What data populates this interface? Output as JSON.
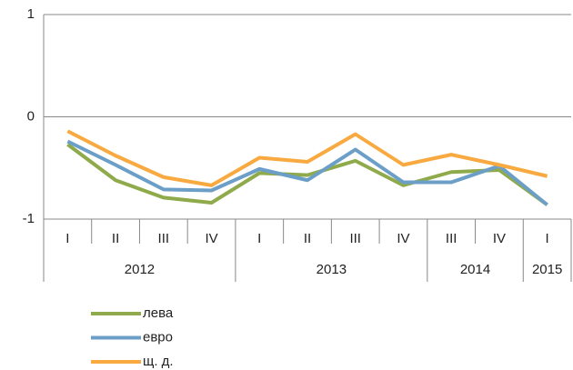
{
  "chart_data": {
    "type": "line",
    "groups": [
      {
        "name": "2012",
        "categories": [
          "I",
          "II",
          "III",
          "IV"
        ]
      },
      {
        "name": "2013",
        "categories": [
          "I",
          "II",
          "III",
          "IV"
        ]
      },
      {
        "name": "2014",
        "categories": [
          "III",
          "IV"
        ]
      },
      {
        "name": "2015",
        "categories": [
          "I"
        ]
      }
    ],
    "series": [
      {
        "name": "лева",
        "color": "#8faa4b",
        "values": [
          -0.27,
          -0.62,
          -0.79,
          -0.84,
          -0.55,
          -0.57,
          -0.43,
          -0.67,
          -0.54,
          -0.52,
          -0.86
        ]
      },
      {
        "name": "евро",
        "color": "#6c9fc8",
        "values": [
          -0.24,
          -0.47,
          -0.71,
          -0.72,
          -0.51,
          -0.62,
          -0.32,
          -0.64,
          -0.64,
          -0.48,
          -0.86
        ]
      },
      {
        "name": "щ. д.",
        "color": "#f8a93f",
        "values": [
          -0.14,
          -0.38,
          -0.59,
          -0.67,
          -0.4,
          -0.44,
          -0.17,
          -0.47,
          -0.37,
          -0.47,
          -0.58
        ]
      }
    ],
    "ylim": [
      -1,
      1
    ],
    "yticks": [
      -1,
      0,
      1
    ],
    "grid": true,
    "legend": "bottom-left"
  }
}
